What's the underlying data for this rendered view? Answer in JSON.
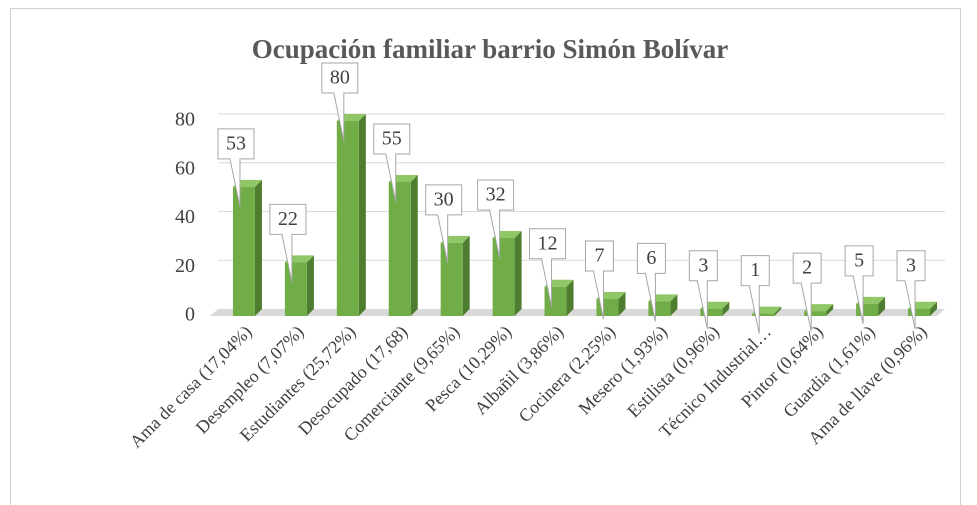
{
  "chart_data": {
    "type": "bar3d",
    "title": "Ocupación familiar barrio Simón Bolívar",
    "categories": [
      "Ama de casa (17,04%)",
      "Desempleo (7,07%)",
      "Estudiantes (25,72%)",
      "Desocupado (17,68)",
      "Comerciante (9,65%)",
      "Pesca (10,29%)",
      "Albañil (3,86%)",
      "Cocinera (2,25%)",
      "Mesero (1,93%)",
      "Estilista (0,96%)",
      "Técnico Industrial…",
      "Pintor (0,64%)",
      "Guardia (1,61%)",
      "Ama de llave (0,96%)"
    ],
    "values": [
      53,
      22,
      80,
      55,
      30,
      32,
      12,
      7,
      6,
      3,
      1,
      2,
      5,
      3
    ],
    "color": "#70ad47",
    "side_color": "#4e7d2f",
    "ylim": [
      0,
      80
    ],
    "yticks": [
      0,
      20,
      40,
      60,
      80
    ],
    "grid": true
  }
}
